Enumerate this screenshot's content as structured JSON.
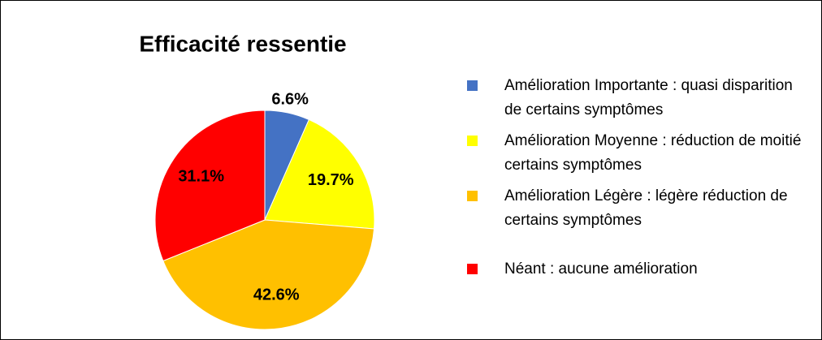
{
  "chart_data": {
    "type": "pie",
    "title": "Efficacité ressentie",
    "categories": [
      "Amélioration Importante : quasi disparition de certains symptômes",
      "Amélioration Moyenne : réduction de moitié certains symptômes",
      "Amélioration Légère : légère réduction de certains symptômes",
      "Néant : aucune amélioration"
    ],
    "values": [
      6.6,
      19.7,
      42.6,
      31.1
    ],
    "value_labels": [
      "6.6%",
      "19.7%",
      "42.6%",
      "31.1%"
    ],
    "colors": [
      "#4472c4",
      "#ffff00",
      "#ffc000",
      "#ff0000"
    ],
    "legend": "right"
  }
}
